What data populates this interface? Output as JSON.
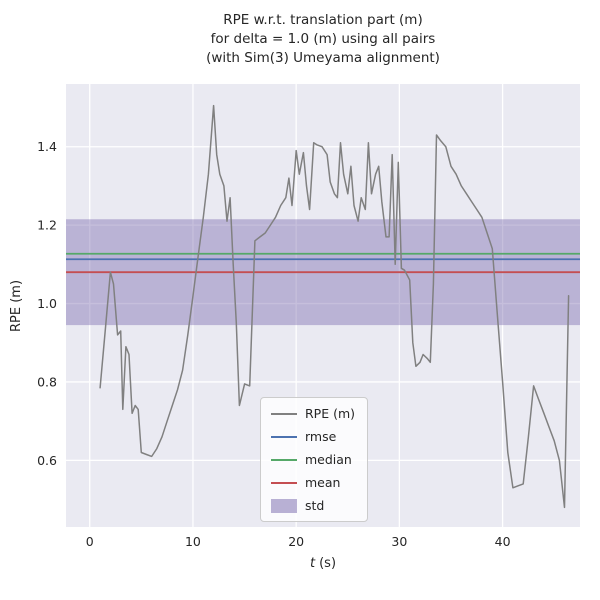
{
  "chart_data": {
    "type": "line",
    "title": "RPE w.r.t. translation part (m)\nfor delta = 1.0 (m) using all pairs\n(with Sim(3) Umeyama alignment)",
    "title_lines": [
      "RPE w.r.t. translation part (m)",
      "for delta = 1.0 (m) using all pairs",
      "(with Sim(3) Umeyama alignment)"
    ],
    "xlabel": "t (s)",
    "xlabel_parts": {
      "var": "t",
      "unit": "(s)"
    },
    "ylabel": "RPE (m)",
    "xlim": [
      -2.3,
      47.5
    ],
    "ylim": [
      0.43,
      1.56
    ],
    "xticks": [
      0,
      10,
      20,
      30,
      40
    ],
    "yticks": [
      0.6,
      0.8,
      1.0,
      1.2,
      1.4
    ],
    "grid": true,
    "plot_bg": "#eaeaf2",
    "grid_color": "#ffffff",
    "legend_position": "lower center",
    "series": [
      {
        "name": "RPE (m)",
        "color": "#808080",
        "x": [
          1,
          1.5,
          2,
          2.3,
          2.7,
          3,
          3.2,
          3.5,
          3.8,
          4.1,
          4.4,
          4.7,
          5,
          5.5,
          6,
          6.5,
          7,
          7.5,
          8,
          8.5,
          9,
          9.5,
          10,
          10.5,
          11,
          11.5,
          12,
          12.3,
          12.6,
          13,
          13.3,
          13.6,
          13.9,
          14.2,
          14.5,
          15,
          15.5,
          16,
          16.5,
          17,
          17.5,
          18,
          18.5,
          19,
          19.3,
          19.6,
          20,
          20.3,
          20.7,
          21,
          21.3,
          21.7,
          22,
          22.5,
          23,
          23.3,
          23.7,
          24,
          24.3,
          24.6,
          25,
          25.3,
          25.6,
          26,
          26.3,
          26.7,
          27,
          27.3,
          27.7,
          28,
          28.3,
          28.7,
          29,
          29.3,
          29.6,
          29.9,
          30.2,
          30.5,
          31,
          31.3,
          31.6,
          32,
          32.3,
          32.7,
          33,
          33.3,
          33.6,
          34,
          34.5,
          35,
          35.5,
          36,
          36.5,
          37,
          37.5,
          38,
          38.5,
          39,
          39.5,
          40,
          40.5,
          41,
          41.5,
          42,
          42.5,
          43,
          43.5,
          44,
          44.5,
          45,
          45.5,
          46,
          46.4
        ],
        "y": [
          0.785,
          0.93,
          1.08,
          1.05,
          0.92,
          0.93,
          0.73,
          0.89,
          0.87,
          0.72,
          0.74,
          0.73,
          0.62,
          0.615,
          0.61,
          0.63,
          0.66,
          0.7,
          0.74,
          0.78,
          0.83,
          0.92,
          1.02,
          1.12,
          1.22,
          1.33,
          1.505,
          1.38,
          1.33,
          1.3,
          1.21,
          1.27,
          1.1,
          0.95,
          0.74,
          0.795,
          0.79,
          1.16,
          1.17,
          1.18,
          1.2,
          1.22,
          1.25,
          1.27,
          1.32,
          1.25,
          1.39,
          1.33,
          1.385,
          1.3,
          1.24,
          1.41,
          1.405,
          1.4,
          1.38,
          1.31,
          1.28,
          1.27,
          1.41,
          1.33,
          1.28,
          1.35,
          1.25,
          1.21,
          1.27,
          1.24,
          1.41,
          1.28,
          1.33,
          1.35,
          1.26,
          1.17,
          1.17,
          1.38,
          1.1,
          1.36,
          1.09,
          1.085,
          1.06,
          0.9,
          0.84,
          0.85,
          0.87,
          0.86,
          0.85,
          1.05,
          1.43,
          1.415,
          1.4,
          1.35,
          1.33,
          1.3,
          1.28,
          1.26,
          1.24,
          1.22,
          1.18,
          1.14,
          0.97,
          0.8,
          0.62,
          0.53,
          0.535,
          0.54,
          0.66,
          0.79,
          0.755,
          0.72,
          0.685,
          0.65,
          0.6,
          0.48,
          1.02
        ]
      }
    ],
    "stat_lines": [
      {
        "name": "rmse",
        "value": 1.113,
        "color": "#4c72b0"
      },
      {
        "name": "median",
        "value": 1.127,
        "color": "#55a868"
      },
      {
        "name": "mean",
        "value": 1.08,
        "color": "#c44e52"
      }
    ],
    "band": {
      "name": "std",
      "ymin": 0.945,
      "ymax": 1.215,
      "color": "#8172b2",
      "alpha": 0.45
    },
    "legend": {
      "items": [
        {
          "label": "RPE (m)",
          "type": "line",
          "color": "#808080"
        },
        {
          "label": "rmse",
          "type": "line",
          "color": "#4c72b0"
        },
        {
          "label": "median",
          "type": "line",
          "color": "#55a868"
        },
        {
          "label": "mean",
          "type": "line",
          "color": "#c44e52"
        },
        {
          "label": "std",
          "type": "patch",
          "color": "#8172b2"
        }
      ]
    }
  }
}
